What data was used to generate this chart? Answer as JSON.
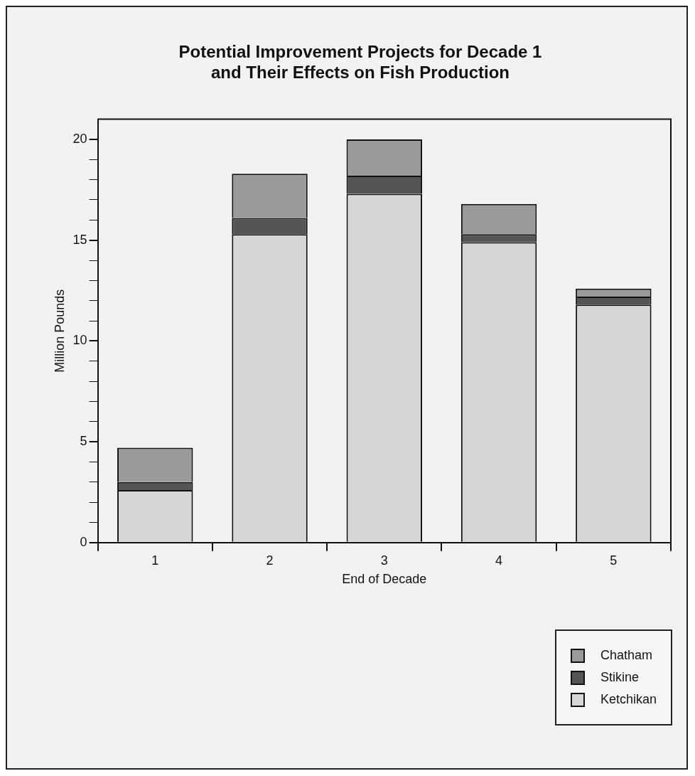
{
  "chart_data": {
    "type": "bar",
    "title": "Potential Improvement Projects for Decade 1\nand Their Effects on Fish Production",
    "xlabel": "End of Decade",
    "ylabel": "Million Pounds",
    "categories": [
      "1",
      "2",
      "3",
      "4",
      "5"
    ],
    "series": [
      {
        "name": "Ketchikan",
        "color": "#d6d6d6",
        "values": [
          2.6,
          15.3,
          17.3,
          14.9,
          11.8
        ]
      },
      {
        "name": "Stikine",
        "color": "#555555",
        "values": [
          0.4,
          0.8,
          0.9,
          0.4,
          0.4
        ]
      },
      {
        "name": "Chatham",
        "color": "#9a9a9a",
        "values": [
          1.7,
          2.2,
          1.8,
          1.5,
          0.4
        ]
      }
    ],
    "stacked": true,
    "ylim": [
      0,
      21
    ],
    "yticks": [
      0,
      {
        "value": 1,
        "label": null
      },
      {
        "value": 2,
        "label": null
      },
      {
        "value": 3,
        "label": null
      },
      {
        "value": 4,
        "label": null
      },
      5,
      {
        "value": 6,
        "label": null
      },
      {
        "value": 7,
        "label": null
      },
      {
        "value": 8,
        "label": null
      },
      {
        "value": 9,
        "label": null
      },
      10,
      {
        "value": 11,
        "label": null
      },
      {
        "value": 12,
        "label": null
      },
      {
        "value": 13,
        "label": null
      },
      {
        "value": 14,
        "label": null
      },
      15,
      {
        "value": 16,
        "label": null
      },
      {
        "value": 17,
        "label": null
      },
      {
        "value": 18,
        "label": null
      },
      {
        "value": 19,
        "label": null
      },
      20
    ],
    "grid": false,
    "legend": "bottom right"
  }
}
